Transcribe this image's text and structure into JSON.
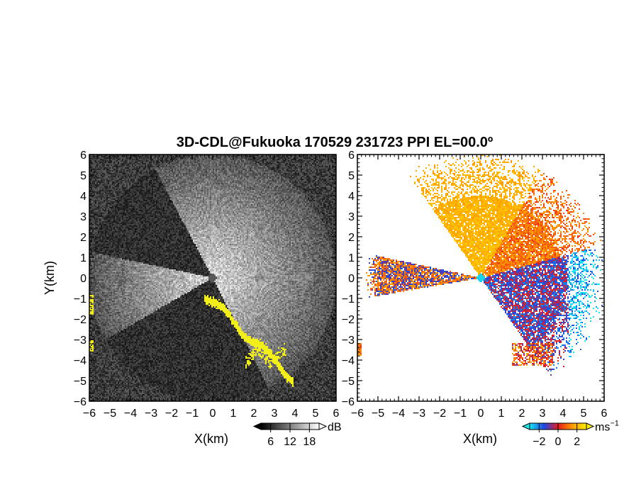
{
  "title": "3D-CDL@Fukuoka 170529 231723 PPI EL=00.0º",
  "chart_data": [
    {
      "type": "heatmap",
      "panel": "reflectivity",
      "xlabel": "X(km)",
      "ylabel": "Y(km)",
      "xlim": [
        -6,
        6
      ],
      "ylim": [
        -6,
        6
      ],
      "xticks": [
        "−6",
        "−5",
        "−4",
        "−3",
        "−2",
        "−1",
        "0",
        "1",
        "2",
        "3",
        "4",
        "5",
        "6"
      ],
      "yticks": [
        "−6",
        "−5",
        "−4",
        "−3",
        "−2",
        "−1",
        "0",
        "1",
        "2",
        "3",
        "4",
        "5",
        "6"
      ],
      "colorbar": {
        "unit": "dB",
        "ticks": [
          "6",
          "12",
          "18"
        ],
        "range": [
          3,
          21
        ],
        "colors": [
          "#000000",
          "#ffffff"
        ]
      },
      "saturated_color": "#f2ee1a",
      "background_color": "#222222"
    },
    {
      "type": "heatmap",
      "panel": "radial_velocity",
      "xlabel": "X(km)",
      "xlim": [
        -6,
        6
      ],
      "ylim": [
        -6,
        6
      ],
      "xticks": [
        "−6",
        "−5",
        "−4",
        "−3",
        "−2",
        "−1",
        "0",
        "1",
        "2",
        "3",
        "4",
        "5",
        "6"
      ],
      "yticks": [
        "−6",
        "−5",
        "−4",
        "−3",
        "−2",
        "−1",
        "0",
        "1",
        "2",
        "3",
        "4",
        "5",
        "6"
      ],
      "colorbar": {
        "unit": "ms",
        "unit_exp": "−1",
        "ticks": [
          "−2",
          "0",
          "2"
        ],
        "range": [
          -3,
          3
        ],
        "colors": [
          "#19e6ee",
          "#1a48e8",
          "#e81c1c",
          "#ff9a00",
          "#ffee00"
        ]
      },
      "background_color": "#ffffff"
    }
  ]
}
